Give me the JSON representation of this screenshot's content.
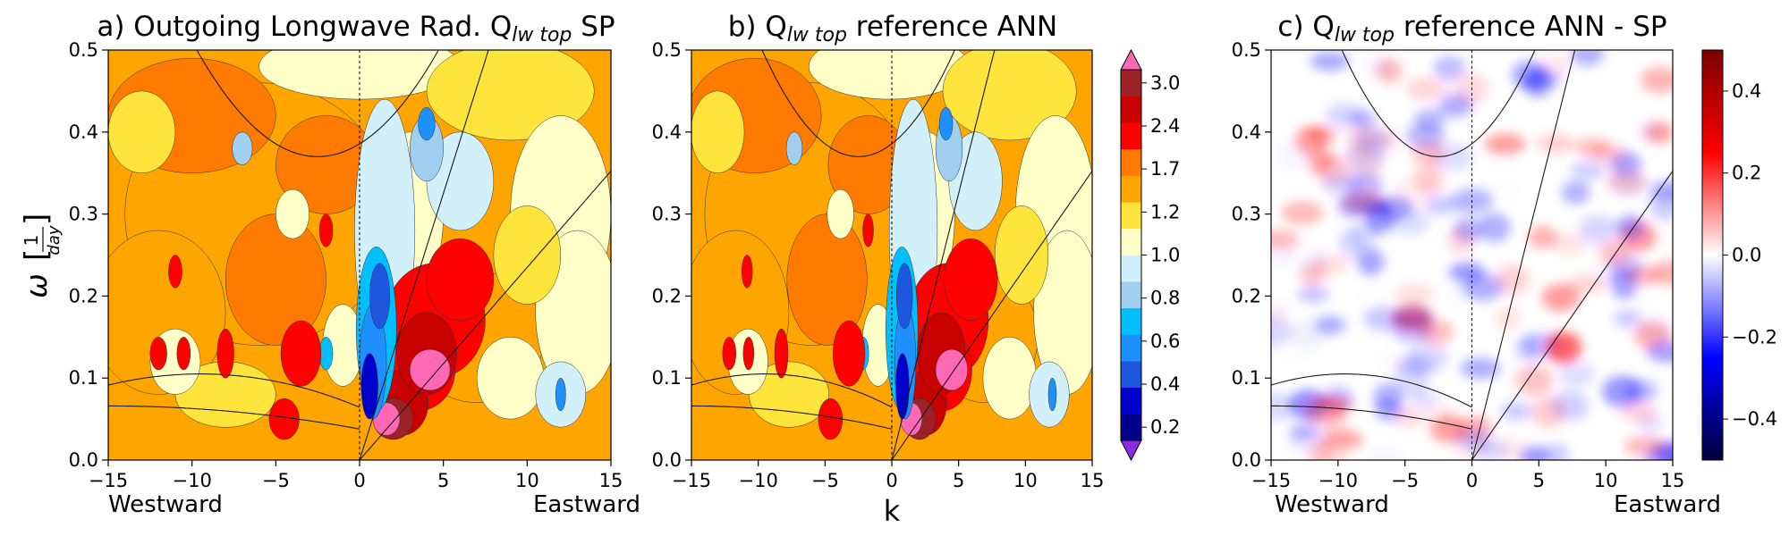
{
  "figure": {
    "panels": [
      {
        "id": "a",
        "title_prefix": "a) Outgoing Longwave Rad. Q",
        "title_sub": "lw top",
        "title_suffix": " SP",
        "direction_labels": {
          "left": "Westward",
          "right": "Eastward"
        }
      },
      {
        "id": "b",
        "title_prefix": "b) Q",
        "title_sub": "lw top",
        "title_suffix": " reference ANN",
        "xlabel": "k"
      },
      {
        "id": "c",
        "title_prefix": "c) Q",
        "title_sub": "lw top",
        "title_suffix": " reference ANN - SP",
        "direction_labels": {
          "left": "Westward",
          "right": "Eastward"
        }
      }
    ],
    "ylabel": "ω",
    "ylabel_frac_num": "1",
    "ylabel_frac_den": "day",
    "xticks": [
      "−15",
      "−10",
      "−5",
      "0",
      "5",
      "10",
      "15"
    ],
    "yticks": [
      "0.0",
      "0.1",
      "0.2",
      "0.3",
      "0.4",
      "0.5"
    ],
    "colorbar_ratio": {
      "tick_labels": [
        "0.2",
        "0.4",
        "0.6",
        "0.8",
        "1.0",
        "1.2",
        "1.7",
        "2.4",
        "3.0"
      ],
      "level_colors": [
        "#8a2be2",
        "#00008b",
        "#0000cd",
        "#1e56dd",
        "#1e90ff",
        "#00bfff",
        "#a0cff0",
        "#d2f0fa",
        "#ffffc8",
        "#ffe43c",
        "#ffa500",
        "#ff7a00",
        "#ff0000",
        "#c80000",
        "#9b2226",
        "#ff69b4"
      ]
    },
    "colorbar_diff": {
      "tick_labels": [
        "−0.4",
        "−0.2",
        "0.0",
        "0.2",
        "0.4"
      ],
      "colormap": [
        "#00003a",
        "#0000ff",
        "#ffffff",
        "#ff0000",
        "#7a0000"
      ]
    }
  },
  "chart_data": [
    {
      "type": "heatmap",
      "title": "a) Outgoing Longwave Rad. Qlw top SP",
      "xlabel": "",
      "ylabel": "ω [1/day]",
      "xlim": [
        -15,
        15
      ],
      "ylim": [
        0,
        0.5
      ],
      "colormap": "discrete ratio levels",
      "levels": [
        0.2,
        0.3,
        0.4,
        0.5,
        0.6,
        0.7,
        0.8,
        0.9,
        1.0,
        1.1,
        1.2,
        1.4,
        1.7,
        2.0,
        2.4,
        3.0
      ],
      "notable_features": [
        {
          "k": 3.5,
          "omega": 0.09,
          "value": 3.0
        },
        {
          "k": 1.5,
          "omega": 0.05,
          "value": 3.0
        },
        {
          "k": 0.8,
          "omega": 0.12,
          "value": 0.4
        },
        {
          "k": 4.0,
          "omega": 0.2,
          "value": 1.9
        },
        {
          "k": -3.5,
          "omega": 0.13,
          "value": 2.2
        },
        {
          "k": 4.0,
          "omega": 0.4,
          "value": 0.6
        }
      ]
    },
    {
      "type": "heatmap",
      "title": "b) Qlw top reference ANN",
      "xlabel": "k",
      "ylabel": "",
      "xlim": [
        -15,
        15
      ],
      "ylim": [
        0,
        0.5
      ],
      "levels": [
        0.2,
        0.3,
        0.4,
        0.5,
        0.6,
        0.7,
        0.8,
        0.9,
        1.0,
        1.1,
        1.2,
        1.4,
        1.7,
        2.0,
        2.4,
        3.0
      ],
      "notable_features": [
        {
          "k": 3.5,
          "omega": 0.1,
          "value": 3.0
        },
        {
          "k": 1.5,
          "omega": 0.05,
          "value": 3.0
        },
        {
          "k": 0.8,
          "omega": 0.12,
          "value": 0.4
        }
      ]
    },
    {
      "type": "heatmap",
      "title": "c) Qlw top reference ANN - SP",
      "xlabel": "",
      "ylabel": "",
      "xlim": [
        -15,
        15
      ],
      "ylim": [
        0,
        0.5
      ],
      "colormap": "seismic",
      "clim": [
        -0.5,
        0.5
      ]
    }
  ]
}
